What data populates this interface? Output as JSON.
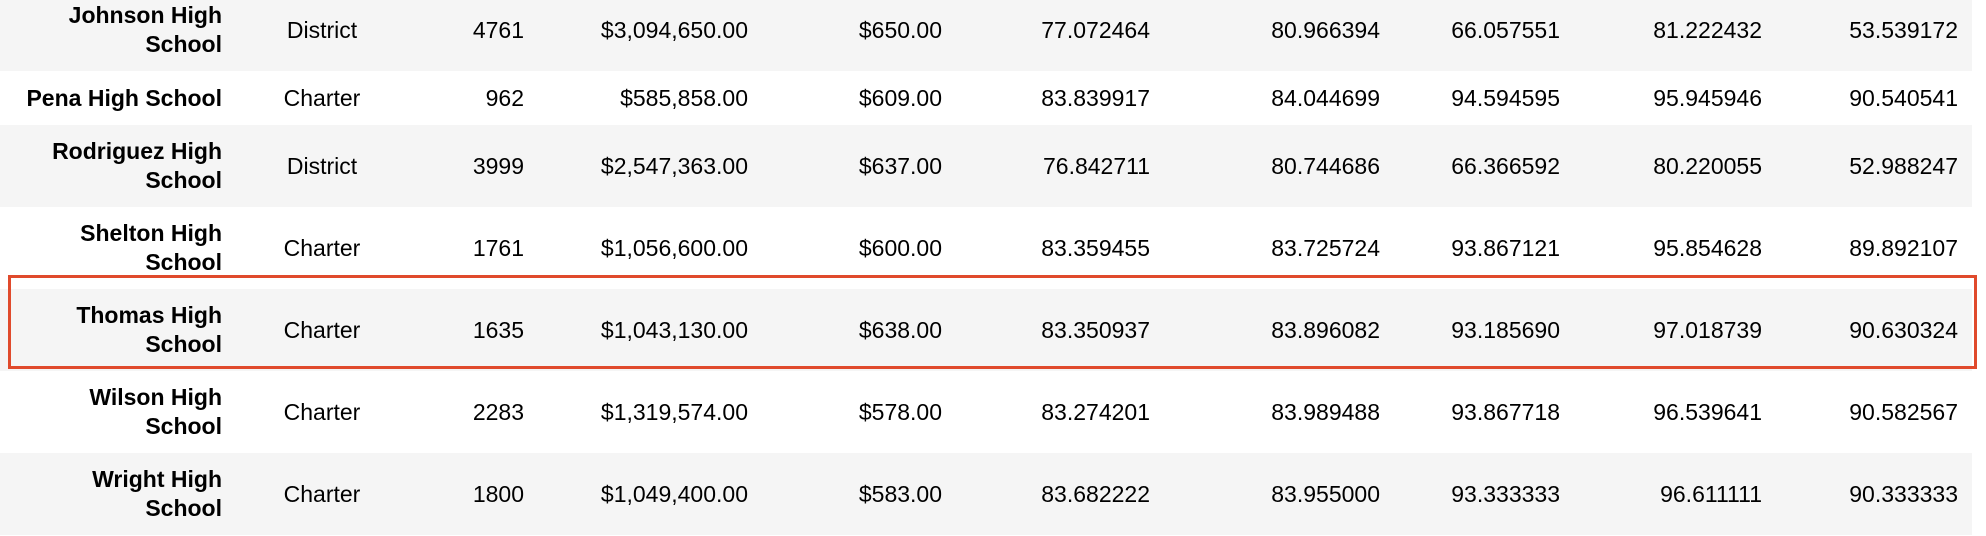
{
  "table": {
    "rows": [
      {
        "name": "Johnson High School",
        "type": "District",
        "students": "4761",
        "budget": "$3,094,650.00",
        "per_student": "$650.00",
        "avg_math": "77.072464",
        "avg_reading": "80.966394",
        "pct_math": "66.057551",
        "pct_reading": "81.222432",
        "pct_overall": "53.539172"
      },
      {
        "name": "Pena High School",
        "type": "Charter",
        "students": "962",
        "budget": "$585,858.00",
        "per_student": "$609.00",
        "avg_math": "83.839917",
        "avg_reading": "84.044699",
        "pct_math": "94.594595",
        "pct_reading": "95.945946",
        "pct_overall": "90.540541"
      },
      {
        "name": "Rodriguez High School",
        "type": "District",
        "students": "3999",
        "budget": "$2,547,363.00",
        "per_student": "$637.00",
        "avg_math": "76.842711",
        "avg_reading": "80.744686",
        "pct_math": "66.366592",
        "pct_reading": "80.220055",
        "pct_overall": "52.988247"
      },
      {
        "name": "Shelton High School",
        "type": "Charter",
        "students": "1761",
        "budget": "$1,056,600.00",
        "per_student": "$600.00",
        "avg_math": "83.359455",
        "avg_reading": "83.725724",
        "pct_math": "93.867121",
        "pct_reading": "95.854628",
        "pct_overall": "89.892107"
      },
      {
        "name": "Thomas High School",
        "type": "Charter",
        "students": "1635",
        "budget": "$1,043,130.00",
        "per_student": "$638.00",
        "avg_math": "83.350937",
        "avg_reading": "83.896082",
        "pct_math": "93.185690",
        "pct_reading": "97.018739",
        "pct_overall": "90.630324"
      },
      {
        "name": "Wilson High School",
        "type": "Charter",
        "students": "2283",
        "budget": "$1,319,574.00",
        "per_student": "$578.00",
        "avg_math": "83.274201",
        "avg_reading": "83.989488",
        "pct_math": "93.867718",
        "pct_reading": "96.539641",
        "pct_overall": "90.582567"
      },
      {
        "name": "Wright High School",
        "type": "Charter",
        "students": "1800",
        "budget": "$1,049,400.00",
        "per_student": "$583.00",
        "avg_math": "83.682222",
        "avg_reading": "83.955000",
        "pct_math": "93.333333",
        "pct_reading": "96.611111",
        "pct_overall": "90.333333"
      }
    ]
  },
  "highlight": {
    "color": "#e04a2c",
    "row_index": 4
  },
  "colors": {
    "alt_row": "#f5f5f5",
    "background": "#ffffff"
  }
}
